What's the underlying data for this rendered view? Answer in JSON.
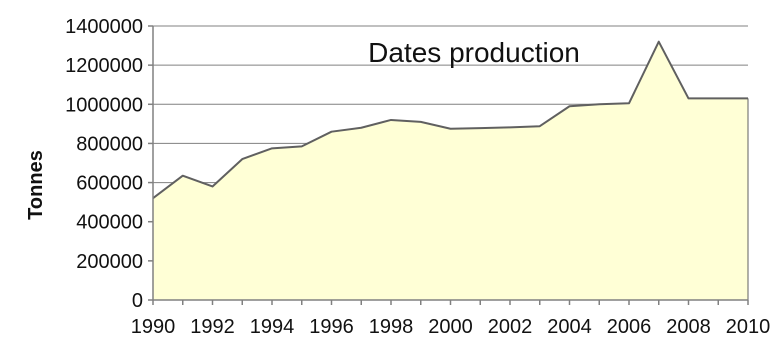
{
  "chart_data": {
    "type": "area",
    "title": "Dates production",
    "xlabel": "",
    "ylabel": "Tonnes",
    "x": [
      1990,
      1991,
      1992,
      1993,
      1994,
      1995,
      1996,
      1997,
      1998,
      1999,
      2000,
      2001,
      2002,
      2003,
      2004,
      2005,
      2006,
      2007,
      2008,
      2009,
      2010
    ],
    "series": [
      {
        "name": "",
        "values": [
          520000,
          635000,
          580000,
          720000,
          775000,
          785000,
          860000,
          880000,
          920000,
          910000,
          875000,
          878000,
          882000,
          888000,
          990000,
          1000000,
          1005000,
          1320000,
          1030000,
          1030000,
          1030000
        ]
      }
    ],
    "xticks": [
      "1990",
      "1992",
      "1994",
      "1996",
      "1998",
      "2000",
      "2002",
      "2004",
      "2006",
      "2008",
      "2010"
    ],
    "xtick_values": [
      1990,
      1992,
      1994,
      1996,
      1998,
      2000,
      2002,
      2004,
      2006,
      2008,
      2010
    ],
    "yticks": [
      "0",
      "200000",
      "400000",
      "600000",
      "800000",
      "1000000",
      "1200000",
      "1400000"
    ],
    "ytick_values": [
      0,
      200000,
      400000,
      600000,
      800000,
      1000000,
      1200000,
      1400000
    ],
    "xlim": [
      1990,
      2010
    ],
    "ylim": [
      0,
      1400000
    ],
    "grid": "horizontal",
    "legend": "none",
    "colors": {
      "fill": "#ffffd6",
      "line": "#606060",
      "grid": "#808080",
      "axis": "#808080"
    }
  }
}
